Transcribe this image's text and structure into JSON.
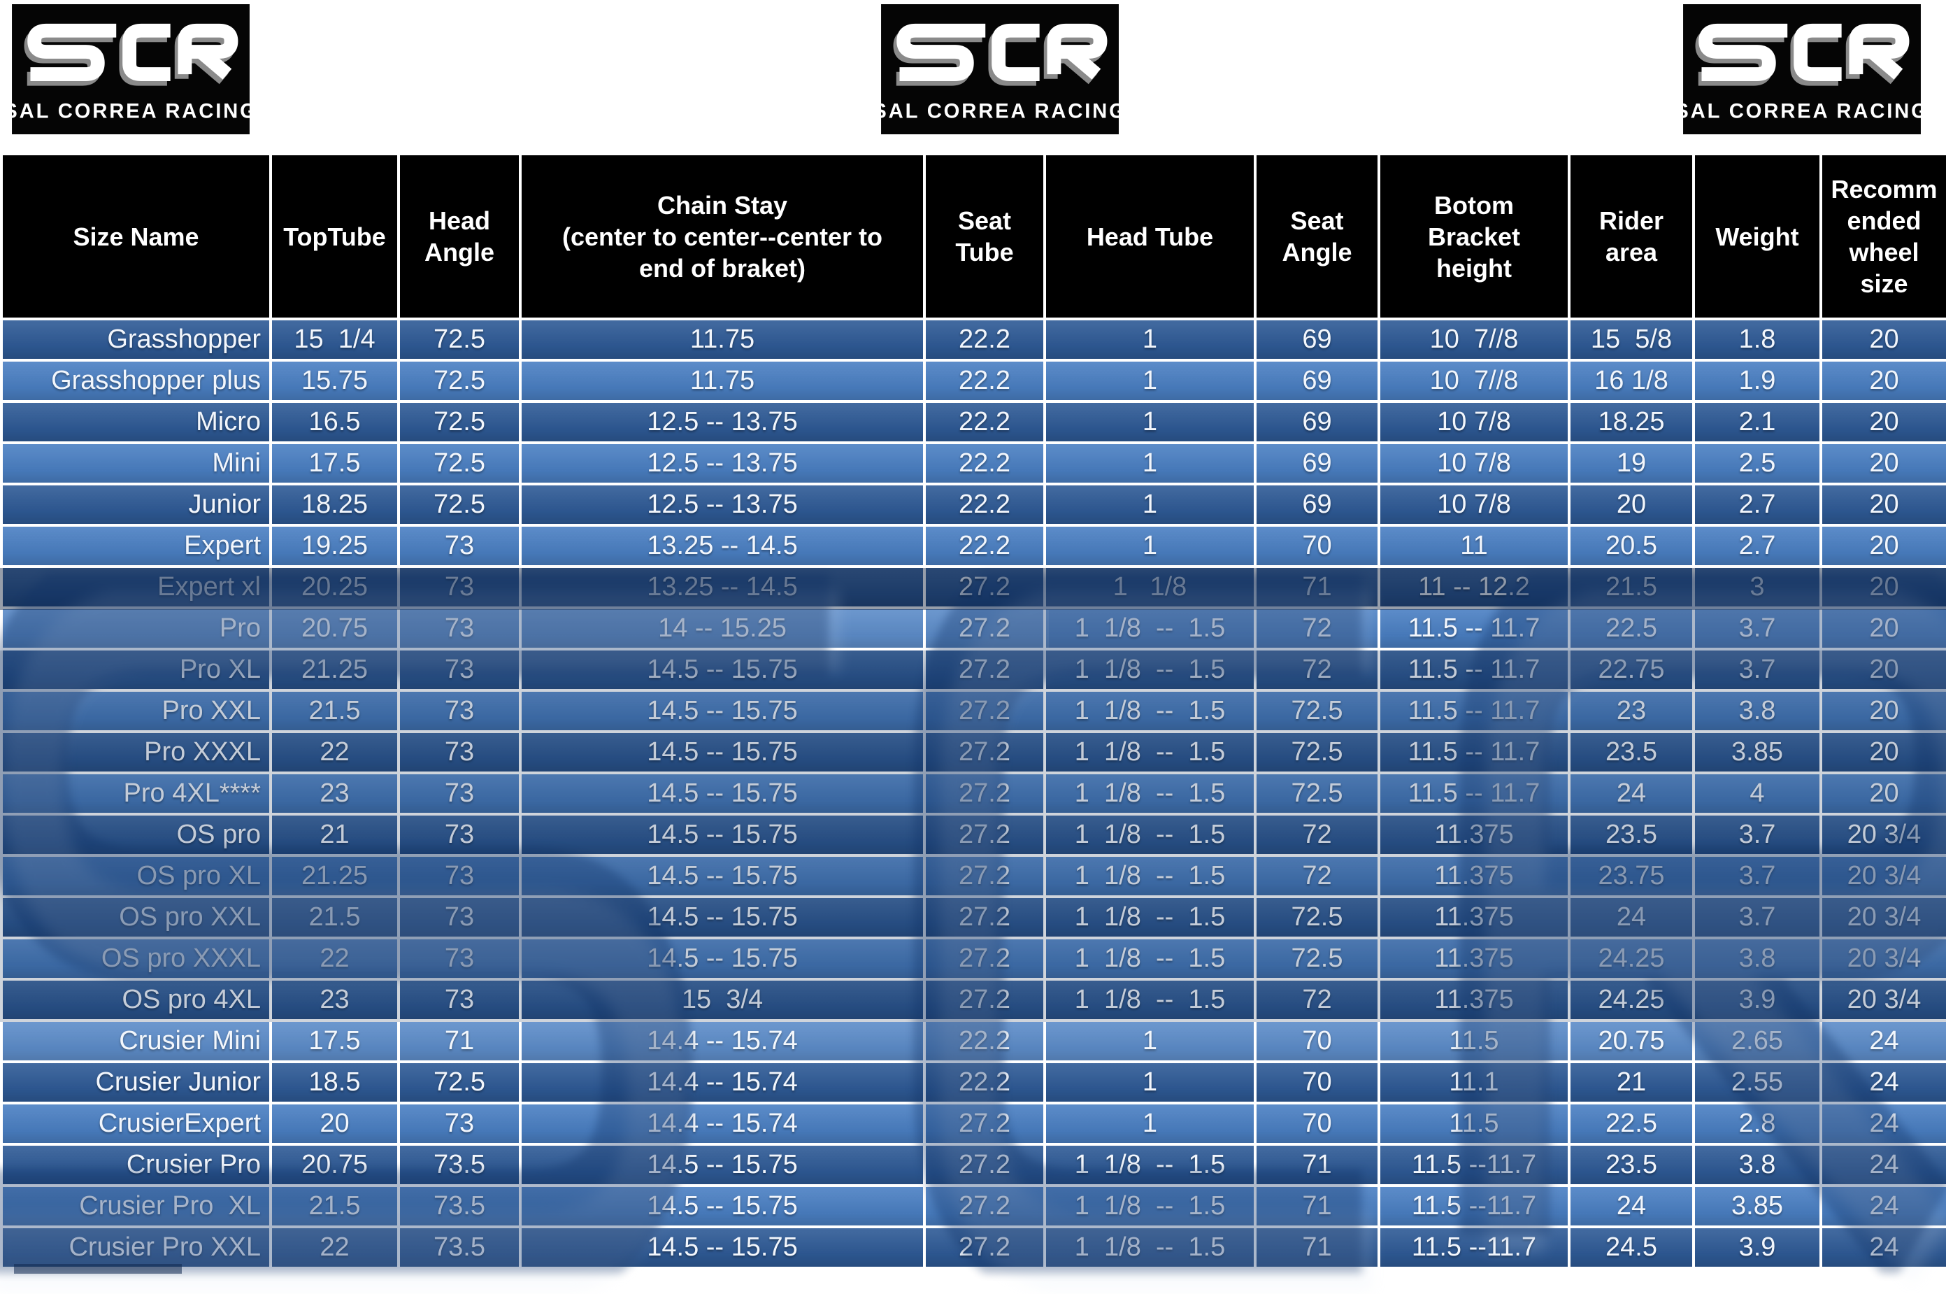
{
  "brand": {
    "logo_text": "SCR",
    "logo_subtext": "SAL CORREA RACING"
  },
  "colors": {
    "header_bg": "#000000",
    "row_dark": "#2e5a96",
    "row_light": "#4a7fc3",
    "grid_line": "#ffffff",
    "text": "#ffffff",
    "watermark": "#0d2f63",
    "page_bg": "#ffffff"
  },
  "table": {
    "headers": [
      "Size Name",
      "TopTube",
      "Head\nAngle",
      "Chain Stay\n(center to center--center to\nend of braket)",
      "Seat\nTube",
      "Head Tube",
      "Seat\nAngle",
      "Botom\nBracket\nheight",
      "Rider\narea",
      "Weight",
      "Recomm\nended\nwheel\nsize"
    ],
    "rows": [
      [
        "Grasshopper",
        "15  1/4",
        "72.5",
        "11.75",
        "22.2",
        "1",
        "69",
        "10  7//8",
        "15  5/8",
        "1.8",
        "20"
      ],
      [
        "Grasshopper plus",
        "15.75",
        "72.5",
        "11.75",
        "22.2",
        "1",
        "69",
        "10  7//8",
        "16 1/8",
        "1.9",
        "20"
      ],
      [
        "Micro",
        "16.5",
        "72.5",
        "12.5 -- 13.75",
        "22.2",
        "1",
        "69",
        "10 7/8",
        "18.25",
        "2.1",
        "20"
      ],
      [
        "Mini",
        "17.5",
        "72.5",
        "12.5 -- 13.75",
        "22.2",
        "1",
        "69",
        "10 7/8",
        "19",
        "2.5",
        "20"
      ],
      [
        "Junior",
        "18.25",
        "72.5",
        "12.5 -- 13.75",
        "22.2",
        "1",
        "69",
        "10 7/8",
        "20",
        "2.7",
        "20"
      ],
      [
        "Expert",
        "19.25",
        "73",
        "13.25 -- 14.5",
        "22.2",
        "1",
        "70",
        "11",
        "20.5",
        "2.7",
        "20"
      ],
      [
        "Expert xl",
        "20.25",
        "73",
        "13.25 -- 14.5",
        "27.2",
        "1   1/8",
        "71",
        "11 -- 12.2",
        "21.5",
        "3",
        "20"
      ],
      [
        "Pro",
        "20.75",
        "73",
        "14 -- 15.25",
        "27.2",
        "1  1/8  --  1.5",
        "72",
        "11.5 -- 11.7",
        "22.5",
        "3.7",
        "20"
      ],
      [
        "Pro XL",
        "21.25",
        "73",
        "14.5 -- 15.75",
        "27.2",
        "1  1/8  --  1.5",
        "72",
        "11.5 -- 11.7",
        "22.75",
        "3.7",
        "20"
      ],
      [
        "Pro XXL",
        "21.5",
        "73",
        "14.5 -- 15.75",
        "27.2",
        "1  1/8  --  1.5",
        "72.5",
        "11.5 -- 11.7",
        "23",
        "3.8",
        "20"
      ],
      [
        "Pro XXXL",
        "22",
        "73",
        "14.5 -- 15.75",
        "27.2",
        "1  1/8  --  1.5",
        "72.5",
        "11.5 -- 11.7",
        "23.5",
        "3.85",
        "20"
      ],
      [
        "Pro 4XL****",
        "23",
        "73",
        "14.5 -- 15.75",
        "27.2",
        "1  1/8  --  1.5",
        "72.5",
        "11.5 -- 11.7",
        "24",
        "4",
        "20"
      ],
      [
        "OS pro",
        "21",
        "73",
        "14.5 -- 15.75",
        "27.2",
        "1  1/8  --  1.5",
        "72",
        "11.375",
        "23.5",
        "3.7",
        "20 3/4"
      ],
      [
        "OS pro XL",
        "21.25",
        "73",
        "14.5 -- 15.75",
        "27.2",
        "1  1/8  --  1.5",
        "72",
        "11.375",
        "23.75",
        "3.7",
        "20 3/4"
      ],
      [
        "OS pro XXL",
        "21.5",
        "73",
        "14.5 -- 15.75",
        "27.2",
        "1  1/8  --  1.5",
        "72.5",
        "11.375",
        "24",
        "3.7",
        "20 3/4"
      ],
      [
        "OS pro XXXL",
        "22",
        "73",
        "14.5 -- 15.75",
        "27.2",
        "1  1/8  --  1.5",
        "72.5",
        "11.375",
        "24.25",
        "3.8",
        "20 3/4"
      ],
      [
        "OS pro 4XL",
        "23",
        "73",
        "15  3/4",
        "27.2",
        "1  1/8  --  1.5",
        "72",
        "11.375",
        "24.25",
        "3.9",
        "20 3/4"
      ],
      [
        "Crusier Mini",
        "17.5",
        "71",
        "14.4 -- 15.74",
        "22.2",
        "1",
        "70",
        "11.5",
        "20.75",
        "2.65",
        "24"
      ],
      [
        "Crusier Junior",
        "18.5",
        "72.5",
        "14.4 -- 15.74",
        "22.2",
        "1",
        "70",
        "11.1",
        "21",
        "2.55",
        "24"
      ],
      [
        "CrusierExpert",
        "20",
        "73",
        "14.4 -- 15.74",
        "27.2",
        "1",
        "70",
        "11.5",
        "22.5",
        "2.8",
        "24"
      ],
      [
        "Crusier Pro",
        "20.75",
        "73.5",
        "14.5 -- 15.75",
        "27.2",
        "1  1/8  --  1.5",
        "71",
        "11.5 --11.7",
        "23.5",
        "3.8",
        "24"
      ],
      [
        "Crusier Pro  XL",
        "21.5",
        "73.5",
        "14.5 -- 15.75",
        "27.2",
        "1  1/8  --  1.5",
        "71",
        "11.5 --11.7",
        "24",
        "3.85",
        "24"
      ],
      [
        "Crusier Pro XXL",
        "22",
        "73.5",
        "14.5 -- 15.75",
        "27.2",
        "1  1/8  --  1.5",
        "71",
        "11.5 --11.7",
        "24.5",
        "3.9",
        "24"
      ]
    ]
  }
}
